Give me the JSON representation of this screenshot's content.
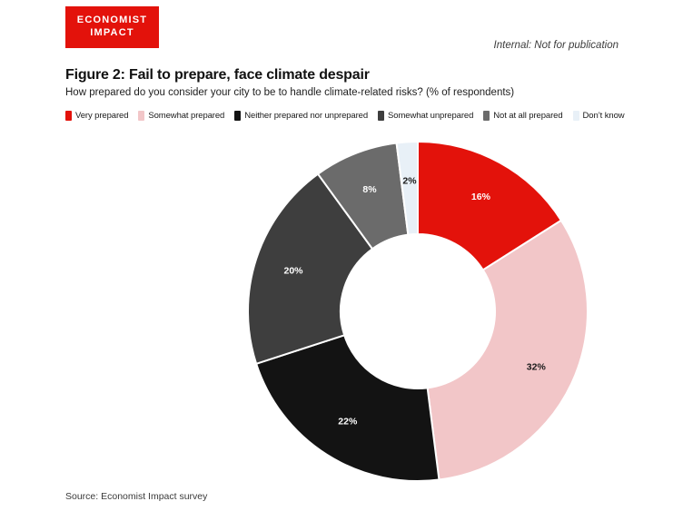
{
  "header": {
    "logo_line1": "ECONOMIST",
    "logo_line2": "IMPACT",
    "internal_note": "Internal: Not for publication"
  },
  "figure": {
    "title": "Figure 2: Fail to prepare, face climate despair",
    "subtitle": "How prepared do you consider your city to be to handle climate-related risks? (% of respondents)",
    "source": "Source: Economist Impact survey"
  },
  "colors": {
    "brand_red": "#E3120B",
    "page_background": "#FFFFFF",
    "separator_white": "#FFFFFF"
  },
  "chart_data": {
    "type": "pie",
    "subtype": "donut",
    "title": "Figure 2: Fail to prepare, face climate despair",
    "question": "How prepared do you consider your city to be to handle climate-related risks? (% of respondents)",
    "categories": [
      "Very prepared",
      "Somewhat prepared",
      "Neither prepared nor unprepared",
      "Somewhat unprepared",
      "Not at all prepared",
      "Don’t know"
    ],
    "values": [
      16,
      32,
      22,
      20,
      8,
      2
    ],
    "data_labels": [
      "16%",
      "32%",
      "22%",
      "20%",
      "8%",
      "2%"
    ],
    "unit": "%",
    "segment_colors": [
      "#E3120B",
      "#F2C6C8",
      "#131313",
      "#3E3E3E",
      "#6B6B6B",
      "#E8F0F7"
    ],
    "data_label_colors": [
      "#FFFFFF",
      "#1A1A1A",
      "#FFFFFF",
      "#FFFFFF",
      "#FFFFFF",
      "#1A1A1A"
    ],
    "start_angle_deg": 0,
    "direction": "clockwise",
    "inner_radius_ratio": 0.455,
    "legend_position": "top",
    "legend_order": "same-as-slices"
  }
}
